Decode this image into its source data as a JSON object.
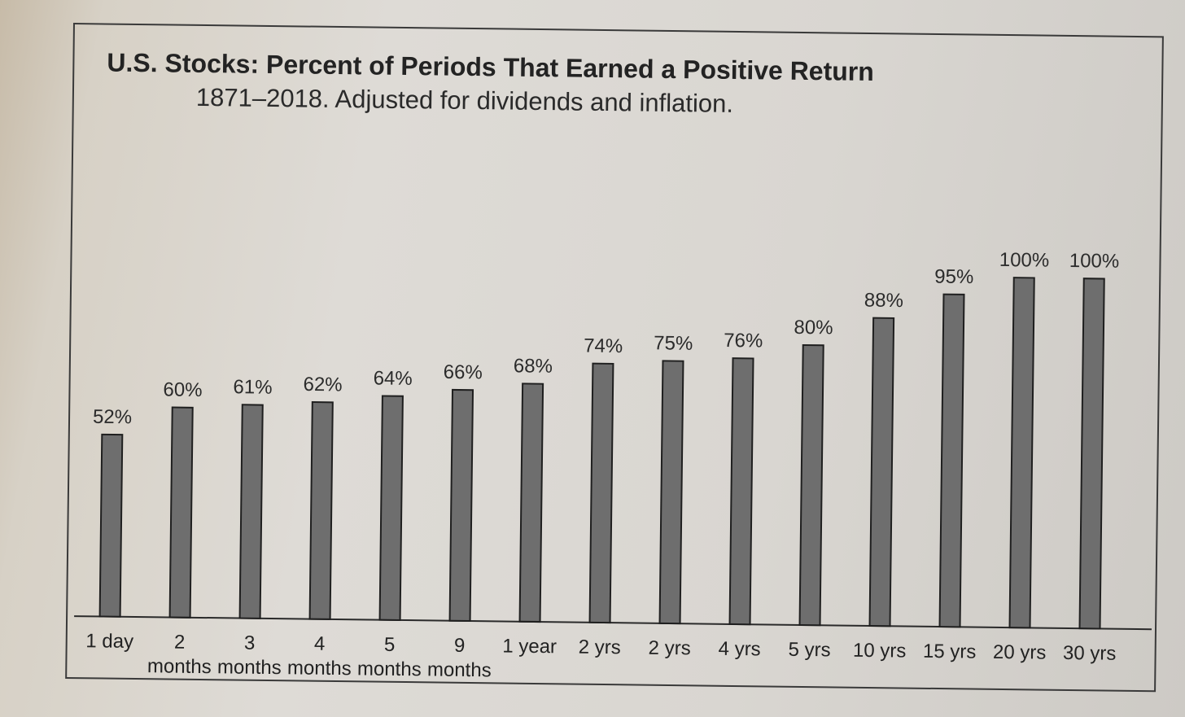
{
  "chart_data": {
    "type": "bar",
    "title": "U.S. Stocks: Percent of Periods That Earned a Positive Return",
    "subtitle": "1871–2018. Adjusted for dividends and inflation.",
    "categories": [
      "1 day",
      "2 months",
      "3 months",
      "4 months",
      "5 months",
      "9 months",
      "1 year",
      "2 yrs",
      "2 yrs",
      "4 yrs",
      "5 yrs",
      "10 yrs",
      "15 yrs",
      "20 yrs",
      "30 yrs"
    ],
    "tick_top": [
      "1 day",
      "2",
      "3",
      "4",
      "5",
      "9",
      "1 year",
      "2 yrs",
      "2 yrs",
      "4 yrs",
      "5 yrs",
      "10 yrs",
      "15 yrs",
      "20 yrs",
      "30 yrs"
    ],
    "tick_bottom": [
      "",
      "months",
      "months",
      "months",
      "months",
      "months",
      "",
      "",
      "",
      "",
      "",
      "",
      "",
      "",
      ""
    ],
    "values": [
      52,
      60,
      61,
      62,
      64,
      66,
      68,
      74,
      75,
      76,
      80,
      88,
      95,
      100,
      100
    ],
    "value_labels": [
      "52%",
      "60%",
      "61%",
      "62%",
      "64%",
      "66%",
      "68%",
      "74%",
      "75%",
      "76%",
      "80%",
      "88%",
      "95%",
      "100%",
      "100%"
    ],
    "ylim": [
      0,
      100
    ],
    "grid": false,
    "bar_color": "#6e6e6e"
  }
}
